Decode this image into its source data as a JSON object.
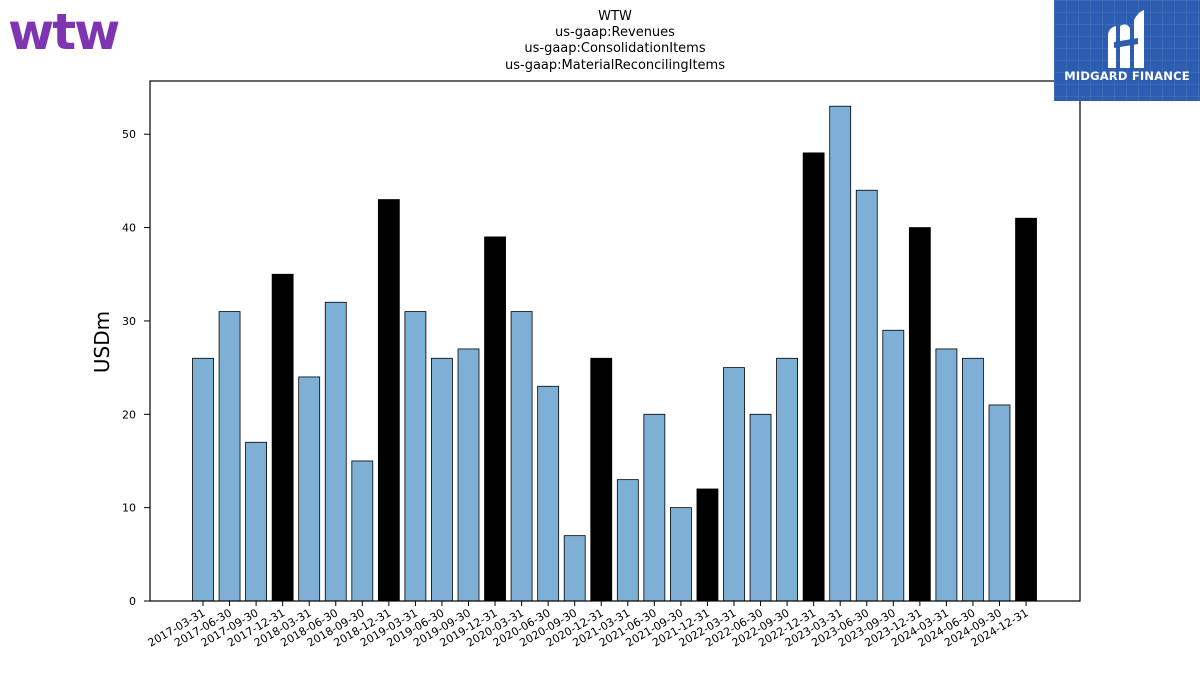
{
  "header": {
    "brand_logo_text": "wtw",
    "sponsor_logo_text": "MIDGARD FINANCE"
  },
  "colors": {
    "wtw_purple": "#7f35b2",
    "midgard_blue": "#2d5db0",
    "bar_quarter": "#7eb0d5",
    "bar_year_end": "#000000"
  },
  "chart_data": {
    "type": "bar",
    "title_lines": [
      "WTW",
      "us-gaap:Revenues",
      "us-gaap:ConsolidationItems",
      "us-gaap:MaterialReconcilingItems"
    ],
    "xlabel": "",
    "ylabel": "USDm",
    "ylim": [
      0,
      55.7
    ],
    "yticks": [
      0,
      10,
      20,
      30,
      40,
      50
    ],
    "grid": false,
    "categories": [
      "2017-03-31",
      "2017-06-30",
      "2017-09-30",
      "2017-12-31",
      "2018-03-31",
      "2018-06-30",
      "2018-09-30",
      "2018-12-31",
      "2019-03-31",
      "2019-06-30",
      "2019-09-30",
      "2019-12-31",
      "2020-03-31",
      "2020-06-30",
      "2020-09-30",
      "2020-12-31",
      "2021-03-31",
      "2021-06-30",
      "2021-09-30",
      "2021-12-31",
      "2022-03-31",
      "2022-06-30",
      "2022-09-30",
      "2022-12-31",
      "2023-03-31",
      "2023-06-30",
      "2023-09-30",
      "2023-12-31",
      "2024-03-31",
      "2024-06-30",
      "2024-09-30",
      "2024-12-31"
    ],
    "values": [
      26,
      31,
      17,
      35,
      24,
      32,
      15,
      43,
      31,
      26,
      27,
      39,
      31,
      23,
      7,
      26,
      13,
      20,
      10,
      12,
      25,
      20,
      26,
      48,
      53,
      44,
      29,
      40,
      27,
      26,
      21,
      41
    ]
  }
}
